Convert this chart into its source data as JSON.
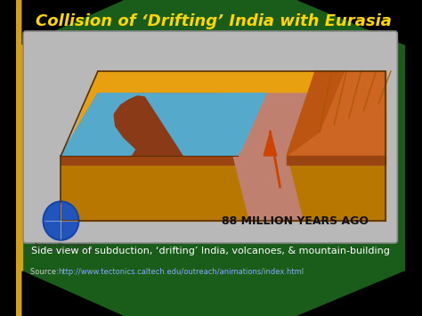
{
  "title": "Collision of ‘Drifting’ India with Eurasia",
  "subtitle": "Side view of subduction, ‘drifting’ India, volcanoes, & mountain-building",
  "source_label": "Source: ",
  "source_url": "http://www.tectonics.caltech.edu/outreach/animations/index.html",
  "annotation": "88 MILLION YEARS AGO",
  "bg_dark": "#000000",
  "bg_green": "#1a5c1a",
  "bg_yellow_strip": "#D4A017",
  "title_color": "#FFD700",
  "title_fontsize": 13,
  "panel_bg": "#b8b8b8",
  "panel_border": "#888888",
  "subtitle_color": "#FFFFFF",
  "subtitle_fontsize": 8,
  "annotation_color": "#111111",
  "annotation_fontsize": 9,
  "source_color": "#CCCCCC",
  "url_color": "#88AAFF",
  "source_fontsize": 6,
  "mantle_top_color": "#E8A010",
  "mantle_side_color": "#CC8800",
  "mantle_front_color": "#B87800",
  "plate_top_color": "#CC6622",
  "plate_side_color": "#994411",
  "ocean_color": "#55AACC",
  "india_color": "#8B3A18",
  "subduct_slab_color": "#C08070",
  "eurasia_top_color": "#CC6622",
  "eurasia_slope_color": "#BB5511",
  "stripe_color": "#AA5500"
}
